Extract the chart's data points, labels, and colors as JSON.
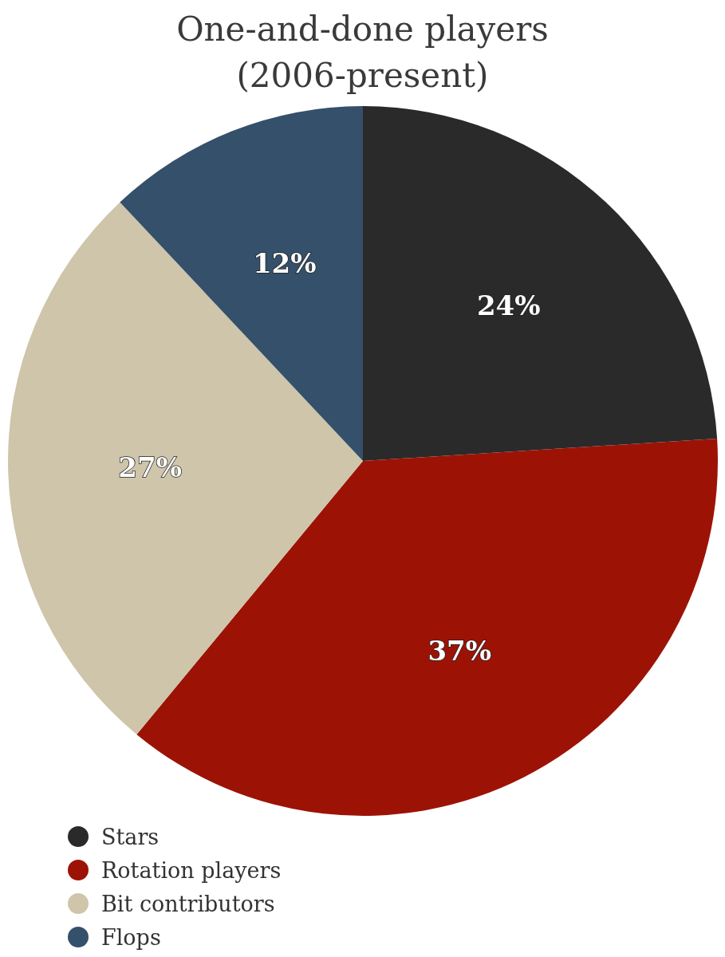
{
  "chart_data": {
    "type": "pie",
    "title": "One-and-done players (2006-present)",
    "categories": [
      "Stars",
      "Rotation players",
      "Bit contributors",
      "Flops"
    ],
    "values": [
      24,
      37,
      27,
      12
    ],
    "colors": [
      "#2b2a2a",
      "#9c1306",
      "#cec5aa",
      "#34506a"
    ],
    "value_labels": [
      "24%",
      "37%",
      "27%",
      "12%"
    ],
    "legend": "bottom left"
  }
}
